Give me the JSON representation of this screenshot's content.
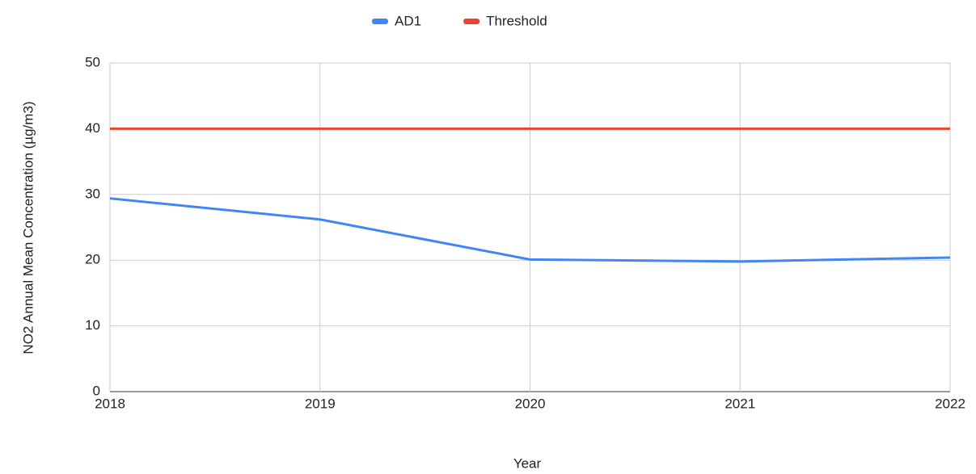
{
  "chart_data": {
    "type": "line",
    "x": [
      2018,
      2019,
      2020,
      2021,
      2022
    ],
    "xlim": [
      2018,
      2022
    ],
    "xticks": [
      2018,
      2019,
      2020,
      2021,
      2022
    ],
    "ylim": [
      0,
      50
    ],
    "yticks": [
      0,
      10,
      20,
      30,
      40,
      50
    ],
    "xlabel": "Year",
    "ylabel": "NO2 Annual Mean Concentration (µg/m3)",
    "grid": true,
    "legend": "top",
    "series": [
      {
        "name": "AD1",
        "color": "#4285f4",
        "values": [
          29.4,
          26.2,
          20.1,
          19.8,
          20.4
        ]
      },
      {
        "name": "Threshold",
        "color": "#ea4335",
        "values": [
          40,
          40,
          40,
          40,
          40
        ]
      }
    ]
  }
}
